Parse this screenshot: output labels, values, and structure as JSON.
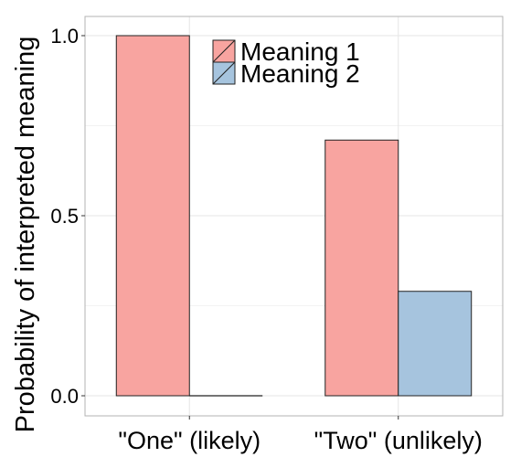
{
  "chart_data": {
    "type": "bar",
    "categories": [
      "\"One\" (likely)",
      "\"Two\" (unlikely)"
    ],
    "series": [
      {
        "name": "Meaning 1",
        "values": [
          1.0,
          0.71
        ],
        "color": "#F8A4A0"
      },
      {
        "name": "Meaning 2",
        "values": [
          0.0,
          0.29
        ],
        "color": "#A6C4DE"
      }
    ],
    "title": "",
    "xlabel": "",
    "ylabel": "Probability of interpreted meaning",
    "ylim": [
      -0.04,
      1.05
    ],
    "yticks": [
      0.0,
      0.5,
      1.0
    ],
    "ytick_labels": [
      "0.0",
      "0.5",
      "1.0"
    ],
    "grid": true,
    "legend_position": "top-right"
  }
}
